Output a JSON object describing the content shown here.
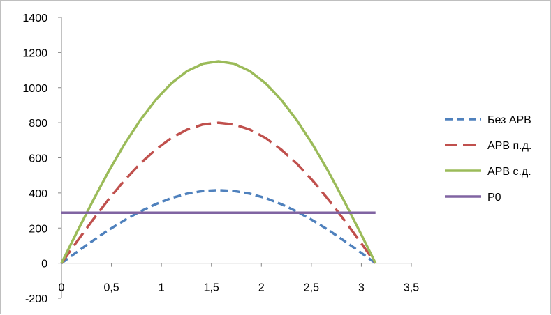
{
  "chart_data": {
    "type": "line",
    "title": "",
    "xlabel": "",
    "ylabel": "",
    "xlim": [
      0,
      3.5
    ],
    "ylim": [
      -200,
      1400
    ],
    "x_ticks": [
      "0",
      "0,5",
      "1",
      "1,5",
      "2",
      "2,5",
      "3",
      "3,5"
    ],
    "y_ticks": [
      "-200",
      "0",
      "200",
      "400",
      "600",
      "800",
      "1000",
      "1200",
      "1400"
    ],
    "x_tick_values": [
      0,
      0.5,
      1,
      1.5,
      2,
      2.5,
      3,
      3.5
    ],
    "y_tick_values": [
      -200,
      0,
      200,
      400,
      600,
      800,
      1000,
      1200,
      1400
    ],
    "grid": {
      "horizontal": false,
      "vertical": false
    },
    "legend_position": "right",
    "x": [
      0,
      0.1571,
      0.3142,
      0.4712,
      0.6283,
      0.7854,
      0.9425,
      1.0996,
      1.2566,
      1.4137,
      1.5708,
      1.7279,
      1.885,
      2.042,
      2.1991,
      2.3562,
      2.5133,
      2.6704,
      2.8274,
      2.9845,
      3.1416
    ],
    "series": [
      {
        "name": "Без АРВ",
        "color": "#4f81bd",
        "dash": "dashed",
        "values": [
          0,
          65,
          128,
          189,
          244,
          294,
          336,
          371,
          396,
          411,
          416,
          411,
          396,
          371,
          336,
          294,
          244,
          189,
          128,
          65,
          0
        ]
      },
      {
        "name": "АРВ п.д.",
        "color": "#c0504d",
        "dash": "longdash",
        "values": [
          0,
          125,
          247,
          363,
          470,
          566,
          647,
          713,
          761,
          790,
          800,
          790,
          761,
          713,
          647,
          566,
          470,
          363,
          247,
          125,
          0
        ]
      },
      {
        "name": "АРВ с.д.",
        "color": "#9bbb59",
        "dash": "solid",
        "values": [
          0,
          180,
          355,
          522,
          676,
          813,
          930,
          1025,
          1094,
          1136,
          1150,
          1136,
          1094,
          1025,
          930,
          813,
          676,
          522,
          355,
          180,
          0
        ]
      },
      {
        "name": "P0",
        "color": "#8064a2",
        "dash": "solid",
        "values": [
          287,
          287,
          287,
          287,
          287,
          287,
          287,
          287,
          287,
          287,
          287,
          287,
          287,
          287,
          287,
          287,
          287,
          287,
          287,
          287,
          287
        ]
      }
    ]
  }
}
